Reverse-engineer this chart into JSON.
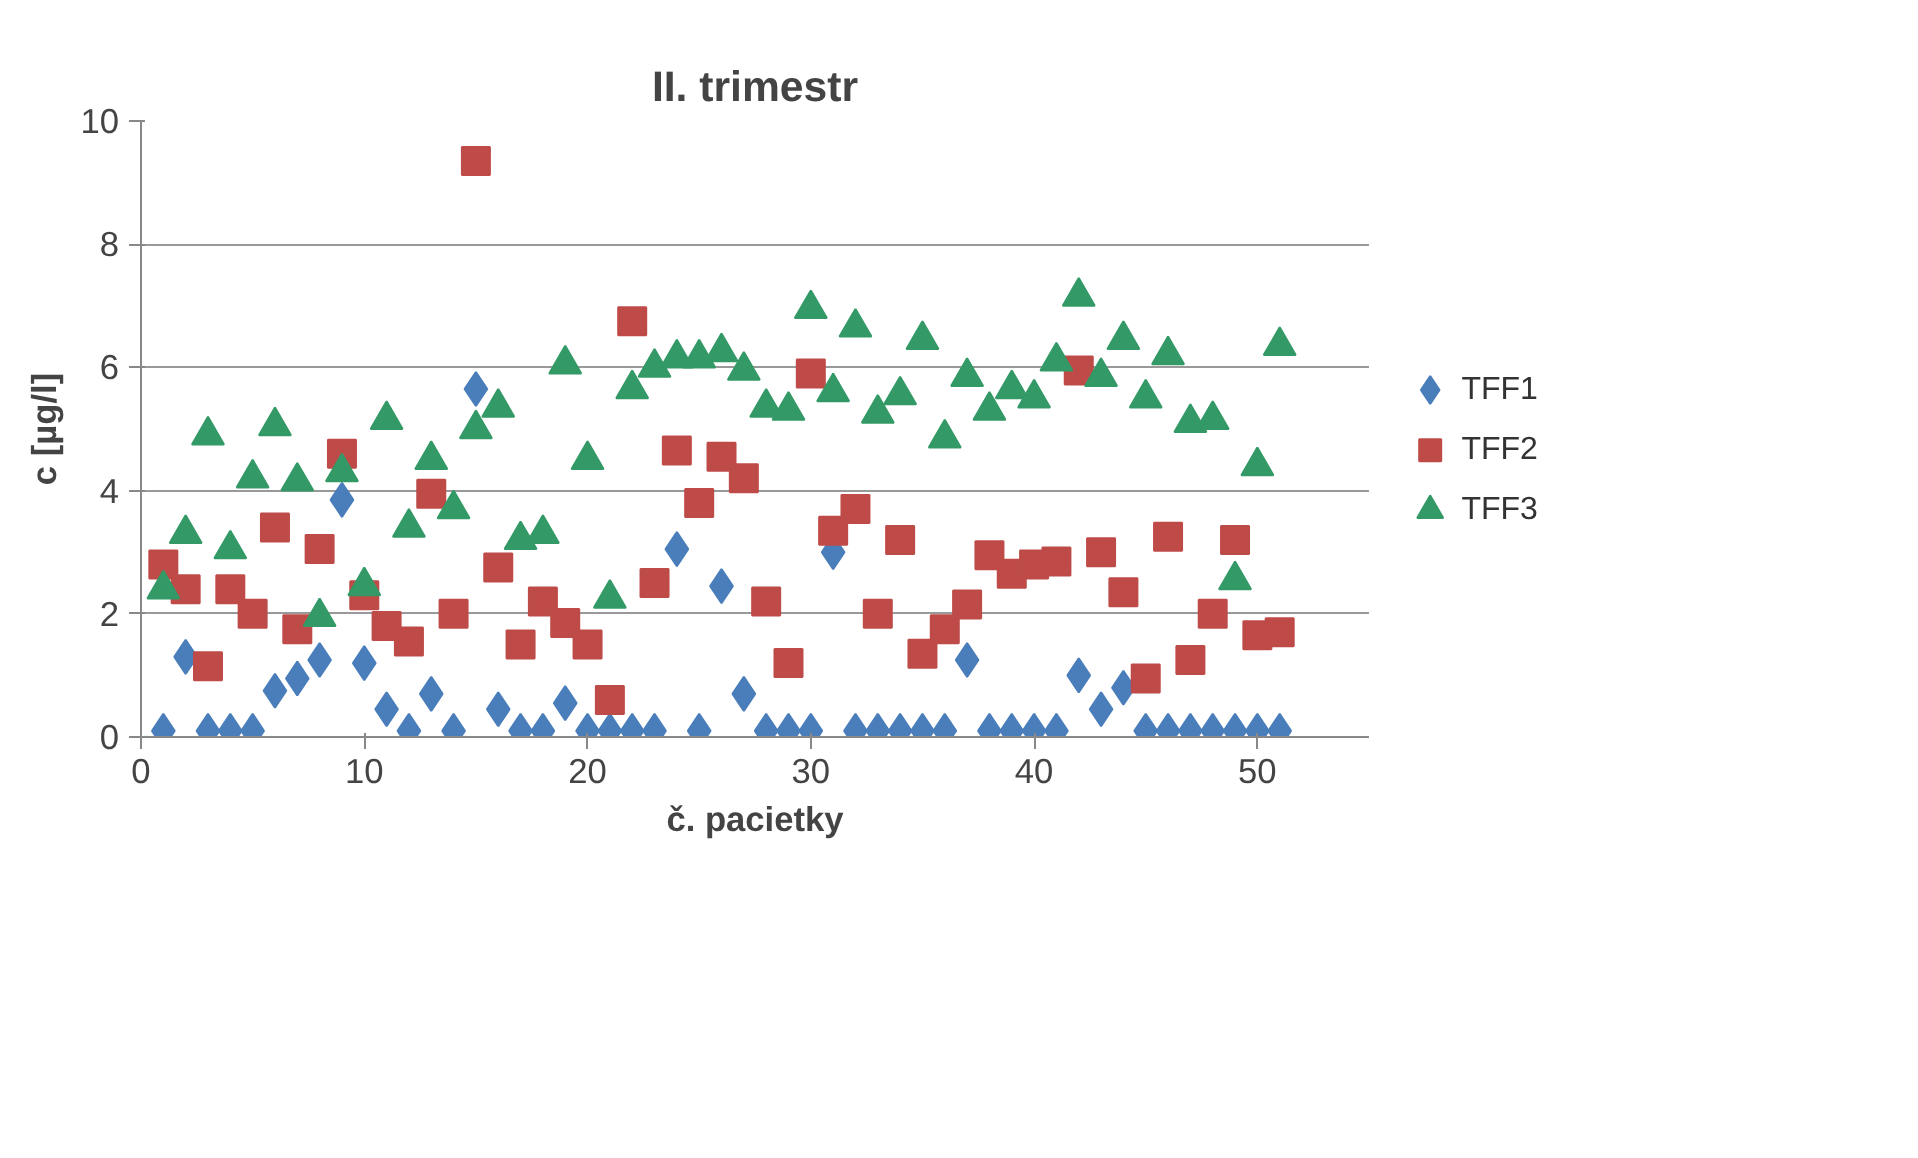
{
  "chart_data": {
    "type": "scatter",
    "title": "II. trimestr",
    "xlabel": "č. pacietky",
    "ylabel": "c [µg/l]",
    "x": [
      1,
      2,
      3,
      4,
      5,
      6,
      7,
      8,
      9,
      10,
      11,
      12,
      13,
      14,
      15,
      16,
      17,
      18,
      19,
      20,
      21,
      22,
      23,
      24,
      25,
      26,
      27,
      28,
      29,
      30,
      31,
      32,
      33,
      34,
      35,
      36,
      37,
      38,
      39,
      40,
      41,
      42,
      43,
      44,
      45,
      46,
      47,
      48,
      49,
      50,
      51
    ],
    "xlim": [
      0,
      55
    ],
    "xticks": [
      0,
      10,
      20,
      30,
      40,
      50
    ],
    "ylim": [
      0,
      10
    ],
    "yticks": [
      0,
      2,
      4,
      6,
      8,
      10
    ],
    "grid": "y",
    "legend": "right",
    "series": [
      {
        "name": "TFF1",
        "color": "#4a7ebb",
        "marker": "diamond",
        "values": [
          0.1,
          1.3,
          0.1,
          0.1,
          0.1,
          0.75,
          0.95,
          1.25,
          3.85,
          1.2,
          0.45,
          0.1,
          0.7,
          0.1,
          5.65,
          0.45,
          0.1,
          0.1,
          0.55,
          0.1,
          0.1,
          0.1,
          0.1,
          3.05,
          0.1,
          2.45,
          0.7,
          0.1,
          0.1,
          0.1,
          3.0,
          0.1,
          0.1,
          0.1,
          0.1,
          0.1,
          1.25,
          0.1,
          0.1,
          0.1,
          0.1,
          1.0,
          0.45,
          0.8,
          0.1,
          0.1,
          0.1,
          0.1,
          0.1,
          0.1,
          0.1
        ]
      },
      {
        "name": "TFF2",
        "color": "#be4b48",
        "marker": "square",
        "values": [
          2.8,
          2.4,
          1.15,
          2.4,
          2.0,
          3.4,
          1.75,
          3.05,
          4.6,
          2.3,
          1.8,
          1.55,
          3.95,
          2.0,
          9.35,
          2.75,
          1.5,
          2.2,
          1.85,
          1.5,
          0.6,
          6.75,
          2.5,
          4.65,
          3.8,
          4.55,
          4.2,
          2.2,
          1.2,
          5.9,
          3.35,
          3.7,
          2.0,
          3.2,
          1.35,
          1.75,
          2.15,
          2.95,
          2.65,
          2.8,
          2.85,
          5.95,
          3.0,
          2.35,
          0.95,
          3.25,
          1.25,
          2.0,
          3.2,
          1.65,
          1.7
        ]
      },
      {
        "name": "TFF3",
        "color": "#339966",
        "marker": "triangle",
        "values": [
          2.4,
          3.3,
          4.9,
          3.05,
          4.2,
          5.05,
          4.15,
          1.95,
          4.3,
          2.45,
          5.15,
          3.4,
          4.5,
          3.7,
          5.0,
          5.35,
          3.2,
          3.3,
          6.05,
          4.5,
          2.25,
          5.65,
          6.0,
          6.15,
          6.15,
          6.25,
          5.95,
          5.35,
          5.3,
          6.95,
          5.6,
          6.65,
          5.25,
          5.55,
          6.45,
          4.85,
          5.85,
          5.3,
          5.65,
          5.5,
          6.1,
          7.15,
          5.85,
          6.45,
          5.5,
          6.2,
          5.1,
          5.15,
          2.55,
          4.4,
          6.35
        ]
      }
    ]
  }
}
